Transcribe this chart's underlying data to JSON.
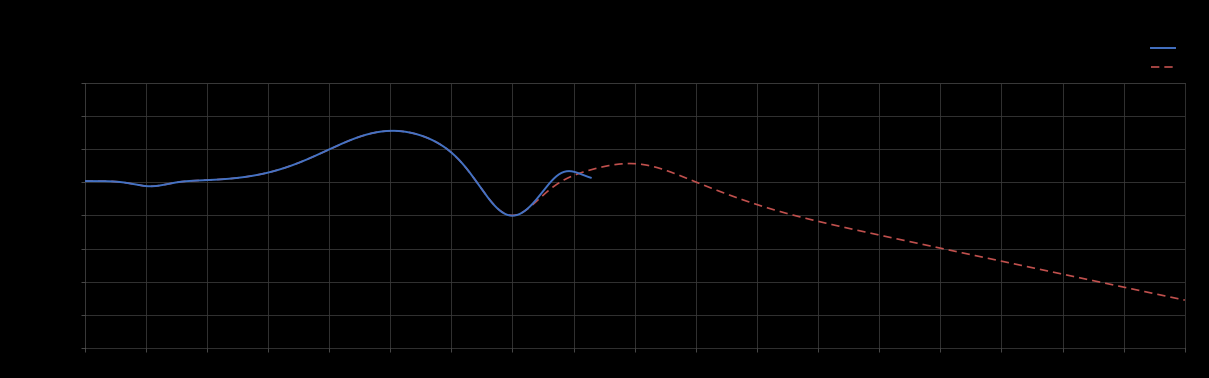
{
  "background_color": "#000000",
  "grid_color": "#3a3a3a",
  "plot_bg_color": "#000000",
  "blue_line_color": "#4472C4",
  "red_line_color": "#C0504D",
  "legend_label_blue": "",
  "legend_label_red": "",
  "figsize": [
    12.09,
    3.78
  ],
  "dpi": 100,
  "n_xgrid": 18,
  "n_ygrid": 8
}
